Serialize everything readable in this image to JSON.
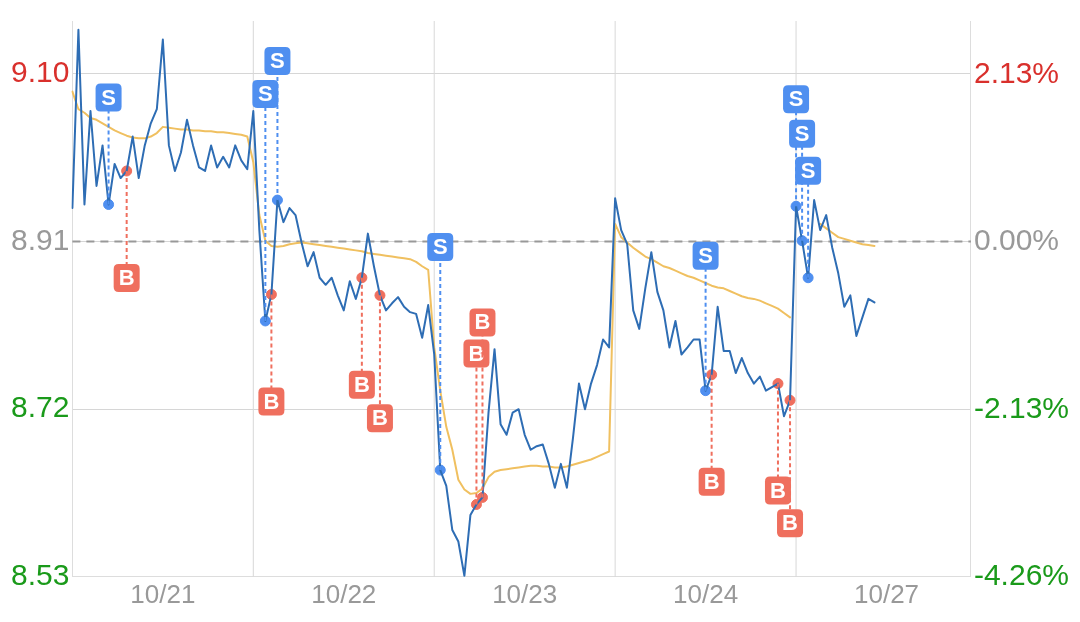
{
  "chart_data": {
    "type": "line",
    "categories": [
      null,
      null,
      null,
      null,
      null,
      null,
      null,
      null,
      null,
      null,
      null,
      null,
      null,
      null,
      null,
      "10/21",
      null,
      null,
      null,
      null,
      null,
      null,
      null,
      null,
      null,
      null,
      null,
      null,
      null,
      null,
      null,
      null,
      null,
      null,
      null,
      null,
      null,
      null,
      null,
      null,
      null,
      null,
      null,
      null,
      null,
      "10/22",
      null,
      null,
      null,
      null,
      null,
      null,
      null,
      null,
      null,
      null,
      null,
      null,
      null,
      null,
      null,
      null,
      null,
      null,
      null,
      null,
      null,
      null,
      null,
      null,
      null,
      null,
      null,
      null,
      null,
      "10/23",
      null,
      null,
      null,
      null,
      null,
      null,
      null,
      null,
      null,
      null,
      null,
      null,
      null,
      null,
      null,
      null,
      null,
      null,
      null,
      null,
      null,
      null,
      null,
      null,
      null,
      null,
      null,
      null,
      null,
      "10/24",
      null,
      null,
      null,
      null,
      null,
      null,
      null,
      null,
      null,
      null,
      null,
      null,
      null,
      null,
      null,
      null,
      null,
      null,
      null,
      null,
      null,
      null,
      null,
      null,
      null,
      null,
      null,
      null,
      null,
      "10/27",
      null,
      null,
      null,
      null,
      null,
      null,
      null,
      null,
      null,
      null,
      null,
      null,
      null,
      null
    ],
    "ylim": [
      8.53,
      9.16
    ],
    "yticks": [
      8.53,
      8.72,
      8.91,
      {
        "value": 9.1,
        "label": "9.10"
      }
    ],
    "y2lim": [
      -4.26,
      2.81
    ],
    "y2ticks": [
      {
        "value": -4.26,
        "label": "-4.26%"
      },
      {
        "value": -2.13,
        "label": "-2.13%"
      },
      {
        "value": 0,
        "label": "0.00%"
      },
      {
        "value": 2.13,
        "label": "2.13%"
      }
    ],
    "grid": "y",
    "legend": false,
    "marker": "none",
    "series": [
      {
        "color": "#2e6db4",
        "values": [
          8.948,
          9.15,
          8.952,
          9.058,
          8.973,
          9.019,
          8.952,
          8.998,
          8.982,
          8.99,
          9.029,
          8.982,
          9.019,
          9.044,
          9.06,
          9.139,
          9.019,
          8.99,
          9.011,
          9.048,
          9.019,
          8.994,
          8.99,
          9.019,
          8.994,
          9.006,
          8.994,
          9.019,
          9.002,
          8.992,
          9.058,
          8.923,
          8.82,
          8.85,
          8.957,
          8.932,
          8.948,
          8.94,
          8.909,
          8.882,
          8.898,
          8.869,
          8.861,
          8.869,
          8.849,
          8.832,
          8.865,
          8.845,
          8.869,
          8.919,
          8.882,
          8.849,
          8.832,
          8.84,
          8.847,
          8.836,
          8.83,
          8.828,
          8.801,
          8.838,
          8.782,
          8.651,
          8.633,
          8.583,
          8.57,
          8.531,
          8.6,
          8.612,
          8.62,
          8.716,
          8.788,
          8.703,
          8.691,
          8.716,
          8.72,
          8.691,
          8.674,
          8.678,
          8.68,
          8.658,
          8.631,
          8.658,
          8.631,
          8.687,
          8.749,
          8.72,
          8.749,
          8.77,
          8.799,
          8.79,
          8.959,
          8.923,
          8.907,
          8.832,
          8.811,
          8.857,
          8.898,
          8.853,
          8.832,
          8.79,
          8.82,
          8.782,
          8.79,
          8.799,
          8.799,
          8.741,
          8.759,
          8.836,
          8.786,
          8.786,
          8.761,
          8.778,
          8.761,
          8.749,
          8.757,
          8.741,
          8.745,
          8.749,
          8.712,
          8.73,
          8.95,
          8.911,
          8.869,
          8.957,
          8.923,
          8.94,
          8.903,
          8.874,
          8.836,
          8.849,
          8.803,
          8.824,
          8.845,
          8.841,
          null,
          null,
          null,
          null,
          null,
          null,
          null,
          null,
          null,
          null,
          null,
          null,
          null,
          null,
          null,
          null
        ]
      },
      {
        "color": "#f0c060",
        "values": [
          9.08,
          9.06,
          9.056,
          9.05,
          9.048,
          9.044,
          9.04,
          9.036,
          9.033,
          9.03,
          9.028,
          9.027,
          9.027,
          9.029,
          9.033,
          9.04,
          9.039,
          9.038,
          9.037,
          9.037,
          9.036,
          9.036,
          9.035,
          9.035,
          9.034,
          9.034,
          9.033,
          9.032,
          9.031,
          9.029,
          9.0,
          8.94,
          8.911,
          8.905,
          8.904,
          8.905,
          8.907,
          8.908,
          8.909,
          8.908,
          8.907,
          8.906,
          8.905,
          8.904,
          8.903,
          8.902,
          8.901,
          8.9,
          8.899,
          8.897,
          8.896,
          8.895,
          8.894,
          8.893,
          8.892,
          8.891,
          8.89,
          8.887,
          8.882,
          8.878,
          8.79,
          8.741,
          8.7,
          8.674,
          8.64,
          8.629,
          8.624,
          8.625,
          8.63,
          8.643,
          8.649,
          8.651,
          8.652,
          8.653,
          8.654,
          8.655,
          8.656,
          8.656,
          8.655,
          8.655,
          8.654,
          8.654,
          8.655,
          8.657,
          8.659,
          8.661,
          8.663,
          8.666,
          8.669,
          8.672,
          8.93,
          8.915,
          8.909,
          8.903,
          8.898,
          8.893,
          8.89,
          8.886,
          8.882,
          8.88,
          8.877,
          8.874,
          8.871,
          8.869,
          8.866,
          8.863,
          8.86,
          8.858,
          8.857,
          8.854,
          8.851,
          8.848,
          8.846,
          8.845,
          8.843,
          8.84,
          8.837,
          8.834,
          8.829,
          8.824,
          null,
          null,
          null,
          null,
          8.93,
          8.925,
          8.92,
          8.915,
          8.913,
          8.911,
          8.909,
          8.907,
          8.906,
          8.905,
          null,
          null,
          null,
          null,
          null,
          null,
          null,
          null,
          null,
          null,
          null,
          null,
          null,
          null,
          null,
          null
        ]
      },
      {
        "type": "scatter",
        "marker": "circle",
        "color": "#4f8ff0",
        "values": [
          null,
          null,
          null,
          null,
          null,
          null,
          8.952,
          null,
          null,
          null,
          null,
          null,
          null,
          null,
          null,
          null,
          null,
          null,
          null,
          null,
          null,
          null,
          null,
          null,
          null,
          null,
          null,
          null,
          null,
          null,
          null,
          null,
          8.82,
          null,
          8.957,
          null,
          null,
          null,
          null,
          null,
          null,
          null,
          null,
          null,
          null,
          null,
          null,
          null,
          null,
          null,
          null,
          null,
          null,
          null,
          null,
          null,
          null,
          null,
          null,
          null,
          null,
          8.651,
          null,
          null,
          null,
          null,
          null,
          null,
          null,
          null,
          null,
          null,
          null,
          null,
          null,
          null,
          null,
          null,
          null,
          null,
          null,
          null,
          null,
          null,
          null,
          null,
          null,
          null,
          null,
          null,
          null,
          null,
          null,
          null,
          null,
          null,
          null,
          null,
          null,
          null,
          null,
          null,
          null,
          null,
          null,
          8.741,
          null,
          null,
          null,
          null,
          null,
          null,
          null,
          null,
          null,
          null,
          null,
          null,
          null,
          null,
          8.95,
          8.911,
          8.869,
          null,
          null,
          null,
          null,
          null,
          null,
          null,
          null,
          null,
          null,
          null,
          null,
          null,
          null,
          null,
          null,
          null,
          null,
          null,
          null,
          null,
          null,
          null,
          null,
          null,
          null,
          null
        ],
        "value_labels": [
          null,
          null,
          null,
          null,
          null,
          null,
          "S",
          null,
          null,
          null,
          null,
          null,
          null,
          null,
          null,
          null,
          null,
          null,
          null,
          null,
          null,
          null,
          null,
          null,
          null,
          null,
          null,
          null,
          null,
          null,
          null,
          null,
          "S",
          null,
          "S",
          null,
          null,
          null,
          null,
          null,
          null,
          null,
          null,
          null,
          null,
          null,
          null,
          null,
          null,
          null,
          null,
          null,
          null,
          null,
          null,
          null,
          null,
          null,
          null,
          null,
          null,
          "S",
          null,
          null,
          null,
          null,
          null,
          null,
          null,
          null,
          null,
          null,
          null,
          null,
          null,
          null,
          null,
          null,
          null,
          null,
          null,
          null,
          null,
          null,
          null,
          null,
          null,
          null,
          null,
          null,
          null,
          null,
          null,
          null,
          null,
          null,
          null,
          null,
          null,
          null,
          null,
          null,
          null,
          null,
          null,
          "S",
          null,
          null,
          null,
          null,
          null,
          null,
          null,
          null,
          null,
          null,
          null,
          null,
          null,
          null,
          "S",
          "S",
          "S",
          null,
          null,
          null,
          null,
          null,
          null,
          null,
          null,
          null,
          null,
          null,
          null,
          null,
          null,
          null,
          null,
          null,
          null,
          null,
          null,
          null,
          null,
          null,
          null,
          null,
          null,
          null
        ]
      },
      {
        "type": "scatter",
        "marker": "circle",
        "color": "#ef6f5e",
        "values": [
          null,
          null,
          null,
          null,
          null,
          null,
          null,
          null,
          null,
          8.99,
          null,
          null,
          null,
          null,
          null,
          null,
          null,
          null,
          null,
          null,
          null,
          null,
          null,
          null,
          null,
          null,
          null,
          null,
          null,
          null,
          null,
          null,
          null,
          8.85,
          null,
          null,
          null,
          null,
          null,
          null,
          null,
          null,
          null,
          null,
          null,
          null,
          null,
          null,
          8.869,
          null,
          null,
          8.849,
          null,
          null,
          null,
          null,
          null,
          null,
          null,
          null,
          null,
          null,
          null,
          null,
          null,
          null,
          null,
          8.612,
          8.62,
          null,
          null,
          null,
          null,
          null,
          null,
          null,
          null,
          null,
          null,
          null,
          null,
          null,
          null,
          null,
          null,
          null,
          null,
          null,
          null,
          null,
          null,
          null,
          null,
          null,
          null,
          null,
          null,
          null,
          null,
          null,
          null,
          null,
          null,
          null,
          null,
          null,
          8.759,
          null,
          null,
          null,
          null,
          null,
          null,
          null,
          null,
          null,
          null,
          8.749,
          null,
          8.73,
          null,
          null,
          null,
          null,
          null,
          null,
          null,
          null,
          null,
          null,
          null,
          null,
          null,
          null,
          null,
          null,
          null,
          null,
          null,
          null,
          null,
          null,
          null,
          null,
          null,
          null,
          null,
          null,
          null,
          null
        ],
        "value_labels": [
          null,
          null,
          null,
          null,
          null,
          null,
          null,
          null,
          null,
          "B",
          null,
          null,
          null,
          null,
          null,
          null,
          null,
          null,
          null,
          null,
          null,
          null,
          null,
          null,
          null,
          null,
          null,
          null,
          null,
          null,
          null,
          null,
          null,
          "B",
          null,
          null,
          null,
          null,
          null,
          null,
          null,
          null,
          null,
          null,
          null,
          null,
          null,
          null,
          "B",
          null,
          null,
          "B",
          null,
          null,
          null,
          null,
          null,
          null,
          null,
          null,
          null,
          null,
          null,
          null,
          null,
          null,
          null,
          "B",
          "B",
          null,
          null,
          null,
          null,
          null,
          null,
          null,
          null,
          null,
          null,
          null,
          null,
          null,
          null,
          null,
          null,
          null,
          null,
          null,
          null,
          null,
          null,
          null,
          null,
          null,
          null,
          null,
          null,
          null,
          null,
          null,
          null,
          null,
          null,
          null,
          null,
          null,
          "B",
          null,
          null,
          null,
          null,
          null,
          null,
          null,
          null,
          null,
          null,
          "B",
          null,
          "B",
          null,
          null,
          null,
          null,
          null,
          null,
          null,
          null,
          null,
          null,
          null,
          null,
          null,
          null,
          null,
          null,
          null,
          null,
          null,
          null,
          null,
          null,
          null,
          null,
          null,
          null,
          null,
          null,
          null,
          null
        ]
      }
    ],
    "ref_lines": [
      {
        "axis": "y",
        "value": 8.91,
        "color": "#999999",
        "line_style": "dashed"
      }
    ]
  }
}
